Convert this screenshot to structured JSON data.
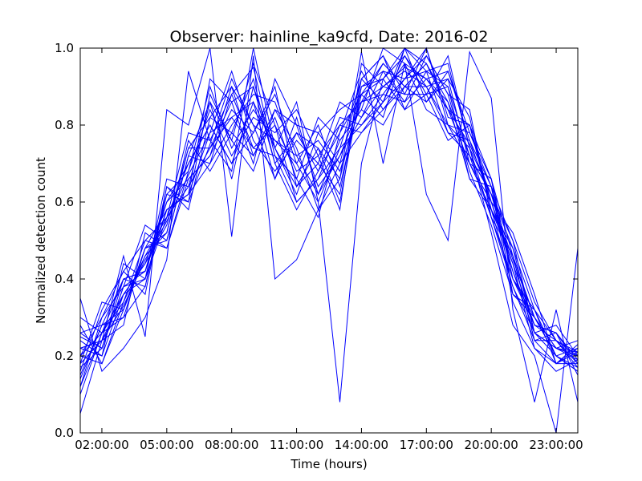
{
  "chart_data": {
    "type": "line",
    "title": "Observer: hainline_ka9cfd, Date: 2016-02",
    "xlabel": "Time (hours)",
    "ylabel": "Normalized detection count",
    "xlim": [
      1,
      24
    ],
    "ylim": [
      0,
      1
    ],
    "x_ticks": [
      {
        "value": 2,
        "label": "02:00:00"
      },
      {
        "value": 5,
        "label": "05:00:00"
      },
      {
        "value": 8,
        "label": "08:00:00"
      },
      {
        "value": 11,
        "label": "11:00:00"
      },
      {
        "value": 14,
        "label": "14:00:00"
      },
      {
        "value": 17,
        "label": "17:00:00"
      },
      {
        "value": 20,
        "label": "20:00:00"
      },
      {
        "value": 23,
        "label": "23:00:00"
      }
    ],
    "y_ticks": [
      {
        "value": 0.0,
        "label": "0.0"
      },
      {
        "value": 0.2,
        "label": "0.2"
      },
      {
        "value": 0.4,
        "label": "0.4"
      },
      {
        "value": 0.6,
        "label": "0.6"
      },
      {
        "value": 0.8,
        "label": "0.8"
      },
      {
        "value": 1.0,
        "label": "1.0"
      }
    ],
    "grid": false,
    "legend": "none",
    "line_color": "#0000ff",
    "x": [
      1,
      2,
      3,
      4,
      5,
      6,
      7,
      8,
      9,
      10,
      11,
      12,
      13,
      14,
      15,
      16,
      17,
      18,
      19,
      20,
      21,
      22,
      23,
      24
    ],
    "series": [
      {
        "values": [
          0.18,
          0.24,
          0.33,
          0.45,
          0.55,
          0.67,
          0.78,
          0.82,
          0.74,
          0.8,
          0.68,
          0.72,
          0.8,
          0.86,
          0.9,
          0.95,
          0.92,
          0.84,
          0.75,
          0.62,
          0.45,
          0.3,
          0.22,
          0.19
        ]
      },
      {
        "values": [
          0.22,
          0.2,
          0.36,
          0.4,
          0.58,
          0.62,
          0.7,
          0.88,
          0.95,
          0.72,
          0.6,
          0.66,
          0.74,
          0.92,
          0.98,
          0.88,
          1.0,
          0.8,
          0.7,
          0.58,
          0.38,
          0.26,
          0.2,
          0.17
        ]
      },
      {
        "values": [
          0.15,
          0.28,
          0.3,
          0.48,
          0.5,
          0.72,
          0.86,
          0.76,
          0.68,
          0.84,
          0.74,
          0.58,
          0.7,
          0.78,
          0.86,
          1.0,
          0.94,
          0.9,
          0.66,
          0.64,
          0.5,
          0.34,
          0.24,
          0.21
        ]
      },
      {
        "values": [
          0.25,
          0.22,
          0.4,
          0.38,
          0.62,
          0.6,
          0.75,
          0.92,
          0.8,
          0.76,
          0.7,
          0.8,
          0.64,
          0.88,
          0.92,
          0.98,
          0.88,
          0.76,
          0.8,
          0.6,
          0.42,
          0.28,
          0.26,
          0.18
        ]
      },
      {
        "values": [
          0.12,
          0.26,
          0.34,
          0.5,
          0.56,
          0.7,
          0.8,
          0.7,
          0.86,
          0.66,
          0.82,
          0.62,
          0.76,
          0.84,
          0.8,
          0.9,
          0.96,
          0.86,
          0.72,
          0.56,
          0.46,
          0.24,
          0.18,
          0.22
        ]
      },
      {
        "values": [
          0.2,
          0.3,
          0.38,
          0.42,
          0.6,
          0.66,
          0.72,
          0.84,
          0.78,
          0.9,
          0.64,
          0.74,
          0.6,
          0.9,
          0.94,
          0.86,
          0.92,
          0.94,
          0.78,
          0.66,
          0.4,
          0.32,
          0.2,
          0.16
        ]
      },
      {
        "values": [
          0.28,
          0.18,
          0.32,
          0.46,
          0.52,
          0.76,
          0.68,
          0.78,
          0.92,
          0.7,
          0.78,
          0.68,
          0.82,
          0.8,
          0.88,
          0.96,
          0.84,
          0.8,
          0.74,
          0.62,
          0.48,
          0.26,
          0.28,
          0.2
        ]
      },
      {
        "values": [
          0.16,
          0.32,
          0.42,
          0.36,
          0.64,
          0.58,
          0.82,
          0.9,
          0.72,
          0.82,
          0.66,
          0.56,
          0.78,
          0.94,
          0.84,
          0.92,
          0.98,
          0.88,
          0.68,
          0.54,
          0.36,
          0.3,
          0.22,
          0.24
        ]
      },
      {
        "values": [
          0.22,
          0.24,
          0.28,
          0.52,
          0.48,
          0.68,
          0.9,
          0.74,
          0.84,
          0.76,
          0.72,
          0.76,
          0.68,
          0.86,
          0.96,
          0.9,
          0.86,
          0.92,
          0.82,
          0.58,
          0.44,
          0.22,
          0.16,
          0.19
        ]
      },
      {
        "values": [
          0.1,
          0.26,
          0.36,
          0.44,
          0.54,
          0.74,
          0.74,
          0.86,
          0.7,
          0.92,
          0.8,
          0.64,
          0.72,
          0.82,
          0.9,
          0.94,
          0.9,
          0.78,
          0.76,
          0.64,
          0.4,
          0.28,
          0.24,
          0.18
        ]
      },
      {
        "values": [
          0.24,
          0.2,
          0.44,
          0.4,
          0.66,
          0.64,
          0.86,
          0.66,
          0.9,
          0.74,
          0.62,
          0.78,
          0.84,
          0.88,
          0.82,
          1.0,
          0.96,
          0.84,
          0.7,
          0.6,
          0.52,
          0.36,
          0.18,
          0.21
        ]
      },
      {
        "values": [
          0.18,
          0.34,
          0.32,
          0.48,
          0.58,
          0.62,
          0.78,
          0.94,
          0.76,
          0.68,
          0.76,
          0.7,
          0.62,
          0.92,
          0.98,
          0.84,
          0.94,
          0.96,
          0.74,
          0.56,
          0.38,
          0.24,
          0.26,
          0.15
        ]
      },
      {
        "values": [
          0.26,
          0.22,
          0.38,
          0.54,
          0.5,
          0.72,
          0.7,
          0.8,
          0.88,
          0.86,
          0.7,
          0.6,
          0.74,
          0.8,
          0.86,
          0.92,
          1.0,
          0.82,
          0.8,
          0.66,
          0.46,
          0.3,
          0.2,
          0.22
        ]
      },
      {
        "values": [
          0.14,
          0.28,
          0.4,
          0.42,
          0.62,
          0.68,
          0.84,
          0.72,
          0.82,
          0.78,
          0.84,
          0.72,
          0.58,
          0.96,
          0.9,
          0.88,
          0.88,
          0.9,
          0.72,
          0.62,
          0.42,
          0.26,
          0.22,
          0.2
        ]
      },
      {
        "values": [
          0.2,
          0.18,
          0.34,
          0.46,
          0.56,
          0.78,
          0.76,
          0.88,
          0.74,
          0.72,
          0.66,
          0.82,
          0.76,
          0.84,
          1.0,
          0.96,
          0.92,
          0.86,
          0.66,
          0.58,
          0.48,
          0.32,
          0.24,
          0.17
        ]
      },
      {
        "values": [
          0.3,
          0.26,
          0.3,
          0.38,
          0.64,
          0.6,
          0.88,
          0.76,
          0.96,
          0.8,
          0.6,
          0.66,
          0.8,
          0.78,
          0.84,
          0.9,
          0.9,
          0.8,
          0.78,
          0.64,
          0.34,
          0.22,
          0.18,
          0.23
        ]
      },
      {
        "values": [
          0.12,
          0.3,
          0.42,
          0.5,
          0.48,
          0.66,
          0.72,
          0.9,
          0.8,
          0.66,
          0.78,
          0.74,
          0.66,
          0.9,
          0.92,
          1.0,
          0.86,
          0.94,
          0.76,
          0.6,
          0.44,
          0.28,
          0.26,
          0.19
        ]
      },
      {
        "values": [
          0.22,
          0.24,
          0.36,
          0.44,
          0.6,
          0.7,
          0.8,
          0.7,
          0.78,
          0.88,
          0.72,
          0.62,
          0.72,
          0.86,
          0.88,
          0.86,
          0.98,
          0.88,
          0.84,
          0.56,
          0.4,
          0.3,
          0.2,
          0.16
        ]
      },
      {
        "values": [
          0.17,
          0.22,
          0.38,
          0.4,
          0.56,
          0.64,
          0.74,
          0.82,
          0.86,
          0.74,
          0.64,
          0.7,
          0.86,
          0.82,
          0.94,
          0.92,
          0.94,
          0.78,
          0.72,
          0.62,
          0.5,
          0.26,
          0.22,
          0.21
        ]
      },
      {
        "values": [
          0.26,
          0.28,
          0.32,
          0.48,
          0.52,
          0.74,
          0.82,
          0.78,
          0.72,
          0.84,
          0.8,
          0.78,
          0.7,
          0.92,
          0.86,
          0.98,
          0.9,
          0.92,
          0.7,
          0.66,
          0.36,
          0.32,
          0.18,
          0.18
        ]
      },
      {
        "values": [
          0.2,
          0.26,
          0.4,
          0.42,
          0.58,
          0.62,
          0.92,
          0.86,
          0.9,
          0.7,
          0.58,
          0.68,
          0.78,
          0.88,
          0.96,
          0.9,
          0.96,
          0.84,
          0.8,
          0.58,
          0.46,
          0.24,
          0.24,
          0.2
        ]
      },
      {
        "values": [
          0.35,
          0.16,
          0.22,
          0.3,
          0.45,
          0.94,
          0.76,
          0.68,
          1.0,
          0.74,
          0.86,
          0.6,
          0.08,
          0.7,
          0.92,
          0.84,
          0.88,
          0.98,
          0.74,
          0.52,
          0.28,
          0.2,
          0.0,
          0.48
        ]
      },
      {
        "values": [
          0.05,
          0.24,
          0.46,
          0.25,
          0.84,
          0.8,
          1.0,
          0.51,
          0.98,
          0.4,
          0.45,
          0.58,
          0.66,
          0.99,
          0.7,
          0.96,
          0.62,
          0.5,
          0.99,
          0.87,
          0.32,
          0.08,
          0.32,
          0.08
        ]
      }
    ]
  }
}
